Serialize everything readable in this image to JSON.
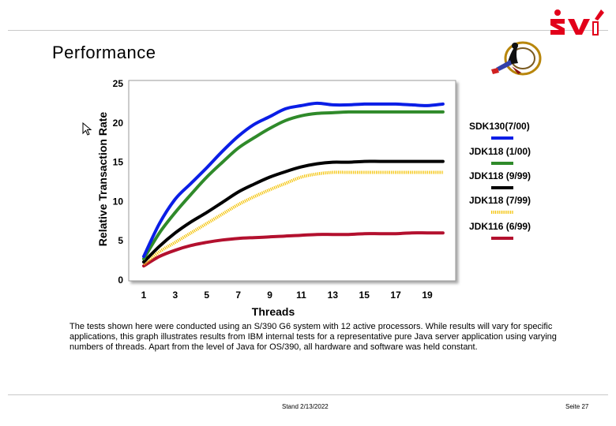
{
  "header": {
    "title": "Performance",
    "logo_text": "svi"
  },
  "chart_data": {
    "type": "line",
    "title": "",
    "xlabel": "Threads",
    "ylabel": "Relative Transaction Rate",
    "xlim": [
      0,
      20.5
    ],
    "ylim": [
      0,
      25
    ],
    "xticks": [
      1,
      3,
      5,
      7,
      9,
      11,
      13,
      15,
      17,
      19
    ],
    "yticks": [
      0,
      5,
      10,
      15,
      20,
      25
    ],
    "grid": false,
    "legend_position": "right",
    "series": [
      {
        "name": "SDK130(7/00)",
        "color": "#0a1ee6",
        "x": [
          1,
          2,
          3,
          4,
          5,
          6,
          7,
          8,
          9,
          10,
          11,
          12,
          13,
          14,
          15,
          16,
          17,
          18,
          19,
          20
        ],
        "values": [
          3,
          7.2,
          10.3,
          12.3,
          14.3,
          16.4,
          18.3,
          19.8,
          20.8,
          21.8,
          22.2,
          22.5,
          22.3,
          22.3,
          22.4,
          22.4,
          22.4,
          22.3,
          22.2,
          22.4
        ]
      },
      {
        "name": "JDK118 (1/00)",
        "color": "#2f8a2a",
        "x": [
          1,
          2,
          3,
          4,
          5,
          6,
          7,
          8,
          9,
          10,
          11,
          12,
          13,
          14,
          15,
          16,
          17,
          18,
          19,
          20
        ],
        "values": [
          2.7,
          6.0,
          8.6,
          10.9,
          13.1,
          15.0,
          16.8,
          18.1,
          19.3,
          20.3,
          20.9,
          21.2,
          21.3,
          21.4,
          21.4,
          21.4,
          21.4,
          21.4,
          21.4,
          21.4
        ]
      },
      {
        "name": "JDK118 (9/99)",
        "color": "#000000",
        "x": [
          1,
          2,
          3,
          4,
          5,
          6,
          7,
          8,
          9,
          10,
          11,
          12,
          13,
          14,
          15,
          16,
          17,
          18,
          19,
          20
        ],
        "values": [
          2.3,
          4.3,
          6.0,
          7.4,
          8.6,
          9.9,
          11.2,
          12.2,
          13.1,
          13.8,
          14.4,
          14.8,
          15.0,
          15.0,
          15.1,
          15.1,
          15.1,
          15.1,
          15.1,
          15.1
        ]
      },
      {
        "name": "JDK118 (7/99)",
        "color": "#f4c200",
        "x": [
          1,
          2,
          3,
          4,
          5,
          6,
          7,
          8,
          9,
          10,
          11,
          12,
          13,
          14,
          15,
          16,
          17,
          18,
          19,
          20
        ],
        "values": [
          2.0,
          3.6,
          4.8,
          6.0,
          7.2,
          8.4,
          9.6,
          10.6,
          11.5,
          12.3,
          13.1,
          13.5,
          13.7,
          13.7,
          13.7,
          13.7,
          13.7,
          13.7,
          13.7,
          13.7
        ]
      },
      {
        "name": "JDK116 (6/99)",
        "color": "#b3102e",
        "x": [
          1,
          2,
          3,
          4,
          5,
          6,
          7,
          8,
          9,
          10,
          11,
          12,
          13,
          14,
          15,
          16,
          17,
          18,
          19,
          20
        ],
        "values": [
          1.8,
          3.0,
          3.8,
          4.4,
          4.8,
          5.1,
          5.3,
          5.4,
          5.5,
          5.6,
          5.7,
          5.8,
          5.8,
          5.8,
          5.9,
          5.9,
          5.9,
          6.0,
          6.0,
          6.0
        ]
      }
    ]
  },
  "caption": "The tests shown here were conducted using an S/390 G6 system with 12 active processors. While results will vary for specific applications, this graph illustrates results from IBM internal tests for a representative pure Java server application using varying numbers of threads. Apart from the level of Java for OS/390, all hardware and software was held constant.",
  "footer": {
    "date": "Stand 2/13/2022",
    "page": "Seite 27"
  }
}
